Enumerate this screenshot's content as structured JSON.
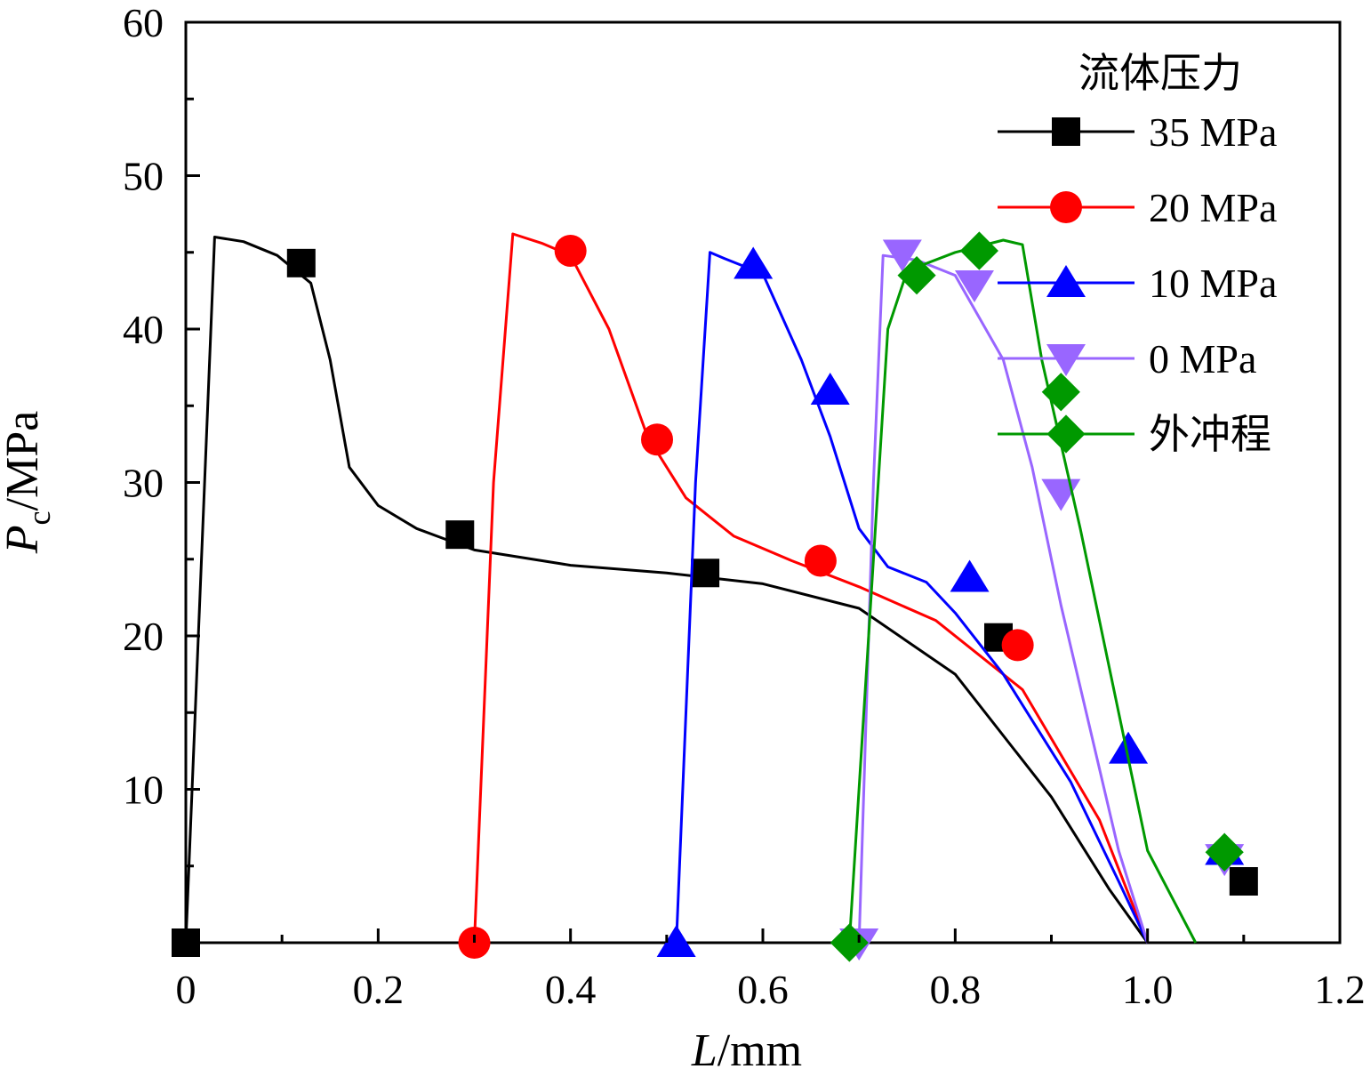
{
  "chart_data": {
    "type": "line",
    "title": "",
    "xlabel_italic": "L",
    "xlabel_rest": "/mm",
    "ylabel_italic": "P",
    "ylabel_sub": "c",
    "ylabel_rest": "/MPa",
    "xlim": [
      0,
      1.2
    ],
    "ylim": [
      0,
      60
    ],
    "xticks": [
      0,
      0.2,
      0.4,
      0.6,
      0.8,
      1.0,
      1.2
    ],
    "xtick_labels": [
      "0",
      "0.2",
      "0.4",
      "0.6",
      "0.8",
      "1.0",
      "1.2"
    ],
    "yticks": [
      10,
      20,
      30,
      40,
      50,
      60
    ],
    "ytick_labels": [
      "10",
      "20",
      "30",
      "40",
      "50",
      "60"
    ],
    "legend_title": "流体压力",
    "legend_position": "top-right",
    "grid": false,
    "series": [
      {
        "name": "35 MPa",
        "color": "#000000",
        "marker": "square",
        "line": [
          [
            0.0,
            0
          ],
          [
            0.03,
            46
          ],
          [
            0.06,
            45.7
          ],
          [
            0.095,
            44.8
          ],
          [
            0.13,
            43
          ],
          [
            0.15,
            38
          ],
          [
            0.17,
            31
          ],
          [
            0.2,
            28.5
          ],
          [
            0.24,
            27
          ],
          [
            0.3,
            25.6
          ],
          [
            0.4,
            24.6
          ],
          [
            0.5,
            24.1
          ],
          [
            0.6,
            23.4
          ],
          [
            0.7,
            21.8
          ],
          [
            0.8,
            17.5
          ],
          [
            0.9,
            9.5
          ],
          [
            0.96,
            3.5
          ],
          [
            1.0,
            0
          ]
        ],
        "markers": [
          [
            0.0,
            0
          ],
          [
            0.12,
            44.3
          ],
          [
            0.285,
            26.6
          ],
          [
            0.54,
            24.1
          ],
          [
            0.845,
            19.9
          ],
          [
            1.1,
            4.0
          ]
        ]
      },
      {
        "name": "20 MPa",
        "color": "#ff0000",
        "marker": "circle",
        "line": [
          [
            0.3,
            0
          ],
          [
            0.32,
            30
          ],
          [
            0.34,
            46.2
          ],
          [
            0.37,
            45.6
          ],
          [
            0.4,
            44.8
          ],
          [
            0.44,
            40
          ],
          [
            0.48,
            33
          ],
          [
            0.52,
            29
          ],
          [
            0.57,
            26.5
          ],
          [
            0.63,
            24.9
          ],
          [
            0.7,
            23.2
          ],
          [
            0.78,
            21
          ],
          [
            0.87,
            16.5
          ],
          [
            0.95,
            8
          ],
          [
            1.0,
            0
          ]
        ],
        "markers": [
          [
            0.3,
            0
          ],
          [
            0.4,
            45.1
          ],
          [
            0.49,
            32.8
          ],
          [
            0.66,
            24.9
          ],
          [
            0.865,
            19.4
          ]
        ]
      },
      {
        "name": "10 MPa",
        "color": "#0000ff",
        "marker": "triangle-up",
        "line": [
          [
            0.51,
            0
          ],
          [
            0.53,
            30
          ],
          [
            0.545,
            45
          ],
          [
            0.56,
            44.6
          ],
          [
            0.6,
            43.6
          ],
          [
            0.64,
            38
          ],
          [
            0.67,
            33
          ],
          [
            0.7,
            27
          ],
          [
            0.73,
            24.5
          ],
          [
            0.77,
            23.5
          ],
          [
            0.8,
            21.5
          ],
          [
            0.85,
            17.5
          ],
          [
            0.92,
            10.5
          ],
          [
            0.97,
            4
          ],
          [
            1.0,
            0
          ]
        ],
        "markers": [
          [
            0.51,
            0
          ],
          [
            0.59,
            44.2
          ],
          [
            0.67,
            36
          ],
          [
            0.815,
            23.8
          ],
          [
            0.98,
            12.6
          ],
          [
            1.08,
            6.0
          ]
        ]
      },
      {
        "name": "0 MPa",
        "color": "#9966ff",
        "marker": "triangle-down",
        "line": [
          [
            0.7,
            0
          ],
          [
            0.715,
            30
          ],
          [
            0.725,
            44.8
          ],
          [
            0.76,
            44.5
          ],
          [
            0.8,
            43.5
          ],
          [
            0.85,
            38
          ],
          [
            0.88,
            31
          ],
          [
            0.91,
            22
          ],
          [
            0.94,
            14
          ],
          [
            0.97,
            6
          ],
          [
            1.0,
            0
          ]
        ],
        "markers": [
          [
            0.7,
            0
          ],
          [
            0.745,
            44.9
          ],
          [
            0.82,
            42.9
          ],
          [
            0.91,
            29.3
          ],
          [
            1.08,
            5.5
          ]
        ]
      },
      {
        "name": "外冲程",
        "color": "#009900",
        "marker": "diamond",
        "line": [
          [
            0.69,
            0
          ],
          [
            0.71,
            20
          ],
          [
            0.73,
            40
          ],
          [
            0.75,
            43.8
          ],
          [
            0.8,
            45
          ],
          [
            0.85,
            45.8
          ],
          [
            0.87,
            45.5
          ],
          [
            0.89,
            38
          ],
          [
            0.93,
            27
          ],
          [
            0.97,
            15
          ],
          [
            1.0,
            6
          ],
          [
            1.05,
            0
          ]
        ],
        "markers": [
          [
            0.69,
            0
          ],
          [
            0.76,
            43.5
          ],
          [
            0.825,
            45.1
          ],
          [
            0.91,
            35.9
          ],
          [
            1.08,
            5.9
          ]
        ]
      }
    ]
  }
}
